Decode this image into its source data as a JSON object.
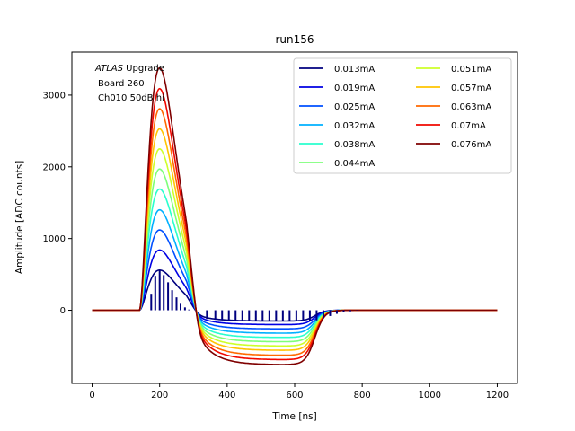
{
  "chart_data": {
    "type": "line",
    "title": "run156",
    "xlabel": "Time [ns]",
    "ylabel": "Amplitude [ADC counts]",
    "xlim": [
      -60,
      1260
    ],
    "ylim": [
      -1020,
      3600
    ],
    "xticks": [
      0,
      200,
      400,
      600,
      800,
      1000,
      1200
    ],
    "yticks": [
      0,
      1000,
      2000,
      3000
    ],
    "grid": false,
    "legend_position": "top-right",
    "legend_columns": 2,
    "annotation": {
      "line1_italic": "ATLAS",
      "line1_rest": " Upgrade",
      "line2": "Board 260",
      "line3": "Ch010 50dB hi"
    },
    "x_description": "time samples 0-1200 ns; pulse starts ~140 ns, peaks ~200 ns, crosses zero ~300 ns, undershoot plateau ~400-640 ns, recovers by ~800 ns",
    "series": [
      {
        "name": "0.013mA",
        "color": "#00007f",
        "peak": 560,
        "undershoot": -150
      },
      {
        "name": "0.019mA",
        "color": "#0000e3",
        "peak": 840,
        "undershoot": -200
      },
      {
        "name": "0.025mA",
        "color": "#0050ff",
        "peak": 1120,
        "undershoot": -260
      },
      {
        "name": "0.032mA",
        "color": "#00b0ff",
        "peak": 1400,
        "undershoot": -320
      },
      {
        "name": "0.038mA",
        "color": "#29ffce",
        "peak": 1690,
        "undershoot": -380
      },
      {
        "name": "0.044mA",
        "color": "#7dff7a",
        "peak": 1970,
        "undershoot": -440
      },
      {
        "name": "0.051mA",
        "color": "#ceff29",
        "peak": 2250,
        "undershoot": -500
      },
      {
        "name": "0.057mA",
        "color": "#ffc400",
        "peak": 2530,
        "undershoot": -560
      },
      {
        "name": "0.063mA",
        "color": "#ff6800",
        "peak": 2810,
        "undershoot": -630
      },
      {
        "name": "0.07mA",
        "color": "#f10800",
        "peak": 3090,
        "undershoot": -690
      },
      {
        "name": "0.076mA",
        "color": "#7f0000",
        "peak": 3380,
        "undershoot": -760
      }
    ],
    "sample_markers": {
      "series": "0.013mA",
      "color": "#00007f",
      "points": [
        [
          162,
          0
        ],
        [
          175,
          230
        ],
        [
          187,
          480
        ],
        [
          200,
          560
        ],
        [
          212,
          490
        ],
        [
          225,
          390
        ],
        [
          237,
          280
        ],
        [
          250,
          180
        ],
        [
          262,
          90
        ],
        [
          275,
          40
        ],
        [
          287,
          10
        ],
        [
          300,
          0
        ],
        [
          340,
          -120
        ],
        [
          365,
          -130
        ],
        [
          385,
          -140
        ],
        [
          405,
          -145
        ],
        [
          425,
          -150
        ],
        [
          445,
          -150
        ],
        [
          465,
          -150
        ],
        [
          485,
          -150
        ],
        [
          505,
          -150
        ],
        [
          525,
          -150
        ],
        [
          545,
          -150
        ],
        [
          565,
          -150
        ],
        [
          585,
          -150
        ],
        [
          605,
          -150
        ],
        [
          625,
          -150
        ],
        [
          645,
          -150
        ],
        [
          665,
          -140
        ],
        [
          685,
          -110
        ],
        [
          705,
          -80
        ],
        [
          725,
          -50
        ],
        [
          745,
          -30
        ],
        [
          765,
          -15
        ],
        [
          785,
          -5
        ]
      ]
    }
  }
}
